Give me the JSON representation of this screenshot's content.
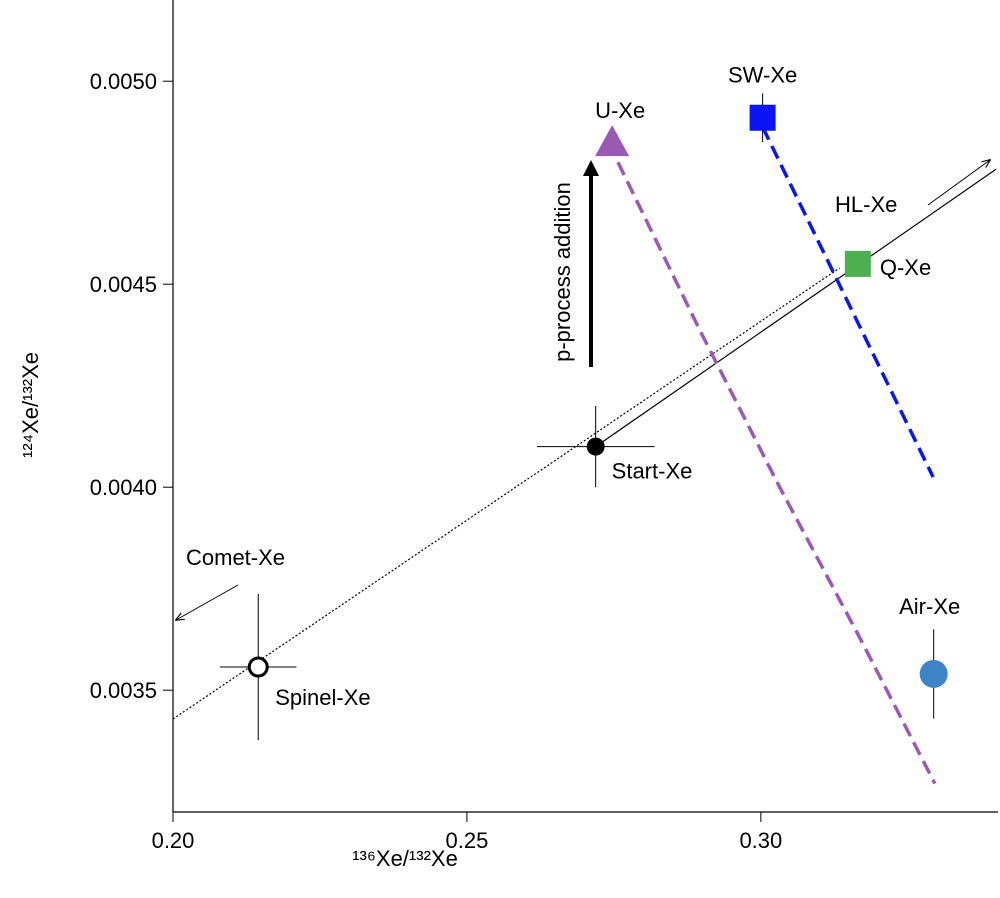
{
  "chart_data": {
    "type": "scatter",
    "x_label": "¹³⁶Xe/¹³²Xe",
    "y_label": "¹²⁴Xe/¹³²Xe",
    "xlim": [
      0.2,
      0.34
    ],
    "ylim": [
      0.0032,
      0.0052
    ],
    "xticks": [
      {
        "value": 0.2,
        "label": "0.20"
      },
      0.25,
      {
        "value": 0.3,
        "label": "0.30"
      }
    ],
    "yticks": [
      {
        "value": 0.0035,
        "label": "0.0035"
      },
      {
        "value": 0.004,
        "label": "0.0040"
      },
      {
        "value": 0.0045,
        "label": "0.0045"
      },
      {
        "value": 0.005,
        "label": "0.0050"
      }
    ],
    "points": [
      {
        "name": "Spinel-Xe",
        "x": 0.2145,
        "y": 0.003557,
        "xerr": 0.0065,
        "yerr": 0.00018,
        "marker": "open-circle",
        "color": "#000000"
      },
      {
        "name": "Start-Xe",
        "x": 0.2719,
        "y": 0.0041,
        "xerr": 0.01,
        "yerr": 0.0001,
        "marker": "circle",
        "color": "#000000"
      },
      {
        "name": "U-Xe",
        "x": 0.2747,
        "y": 0.00485,
        "marker": "triangle",
        "color": "#9b59b6"
      },
      {
        "name": "SW-Xe",
        "x": 0.3003,
        "y": 0.00491,
        "yerr": 6e-05,
        "marker": "square",
        "color": "#0a14f5"
      },
      {
        "name": "Q-Xe",
        "x": 0.3165,
        "y": 0.00455,
        "marker": "square",
        "color": "#4caf50"
      },
      {
        "name": "Air-Xe",
        "x": 0.3294,
        "y": 0.00354,
        "yerr": 0.00011,
        "marker": "circle",
        "color": "#3d85c6"
      }
    ],
    "lines": [
      {
        "x": [
          0.2,
          0.3134
        ],
        "y": [
          0.003429,
          0.00454
        ],
        "style": "dotted",
        "color": "#000000"
      },
      {
        "x": [
          0.2719,
          0.34
        ],
        "y": [
          0.0041,
          0.004783
        ],
        "style": "solid",
        "color": "#000000"
      },
      {
        "x": [
          0.2757,
          0.2895,
          0.3032,
          0.3168,
          0.3296
        ],
        "y": [
          0.0048,
          0.00439,
          0.004,
          0.00363,
          0.00327
        ],
        "style": "dashed",
        "color": "#9b59b6"
      },
      {
        "x": [
          0.3003,
          0.3293
        ],
        "y": [
          0.004887,
          0.004025
        ],
        "style": "dashed",
        "color": "#0a14f5"
      }
    ],
    "annotations": [
      "HL-Xe",
      "Comet-Xe",
      "p-process addition"
    ]
  }
}
